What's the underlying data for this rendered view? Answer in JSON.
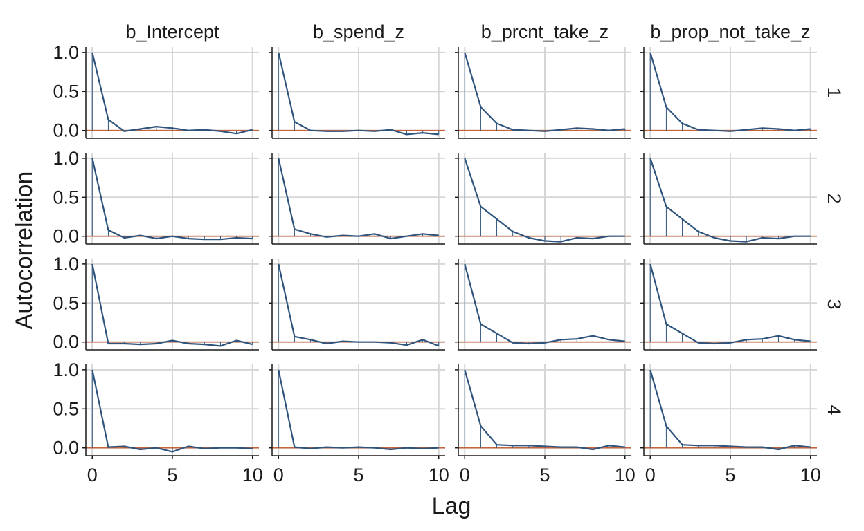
{
  "chart_data": {
    "type": "line",
    "ylabel": "Autocorrelation",
    "xlabel": "Lag",
    "columns": [
      "b_Intercept",
      "b_spend_z",
      "b_prcnt_take_z",
      "b_prop_not_take_z"
    ],
    "column_display": [
      "b_Intercept",
      "b_spend_z",
      "b_prcnt_take_z",
      "b_prop_not_take_z"
    ],
    "rows": [
      "1",
      "2",
      "3",
      "4"
    ],
    "x": [
      0,
      1,
      2,
      3,
      4,
      5,
      6,
      7,
      8,
      9,
      10
    ],
    "xlim": [
      -0.4,
      10.4
    ],
    "ylim": [
      -0.1,
      1.07
    ],
    "x_ticks": [
      0,
      5,
      10
    ],
    "y_ticks": [
      0.0,
      0.5,
      1.0
    ],
    "x_tick_labels": [
      "0",
      "5",
      "10"
    ],
    "y_tick_labels": [
      "0.0",
      "0.5",
      "1.0"
    ],
    "grid": true,
    "colors": {
      "line": "#2e547d",
      "zero_line": "#c8643c",
      "grid": "#d6d6d6",
      "axis": "#1a1a1a"
    },
    "panels": [
      [
        [
          1.0,
          0.14,
          -0.01,
          0.02,
          0.05,
          0.03,
          0.0,
          0.01,
          -0.01,
          -0.04,
          0.01
        ],
        [
          1.0,
          0.11,
          0.0,
          -0.01,
          -0.01,
          0.0,
          -0.01,
          0.01,
          -0.05,
          -0.03,
          -0.05
        ],
        [
          1.0,
          0.3,
          0.09,
          0.01,
          0.0,
          -0.01,
          0.01,
          0.03,
          0.02,
          0.0,
          0.02
        ],
        [
          1.0,
          0.3,
          0.09,
          0.01,
          0.0,
          -0.01,
          0.01,
          0.03,
          0.02,
          0.0,
          0.02
        ]
      ],
      [
        [
          1.0,
          0.08,
          -0.02,
          0.01,
          -0.03,
          0.0,
          -0.03,
          -0.04,
          -0.04,
          -0.02,
          -0.03
        ],
        [
          1.0,
          0.09,
          0.03,
          -0.01,
          0.01,
          0.0,
          0.03,
          -0.03,
          0.0,
          0.03,
          0.01
        ],
        [
          1.0,
          0.38,
          0.22,
          0.06,
          -0.02,
          -0.06,
          -0.07,
          -0.02,
          -0.03,
          0.0,
          0.0
        ],
        [
          1.0,
          0.38,
          0.22,
          0.06,
          -0.02,
          -0.06,
          -0.07,
          -0.02,
          -0.03,
          0.0,
          0.0
        ]
      ],
      [
        [
          1.0,
          -0.02,
          -0.02,
          -0.03,
          -0.02,
          0.02,
          -0.02,
          -0.03,
          -0.05,
          0.02,
          -0.03
        ],
        [
          1.0,
          0.07,
          0.03,
          -0.02,
          0.01,
          0.0,
          0.0,
          -0.01,
          -0.04,
          0.03,
          -0.05
        ],
        [
          1.0,
          0.23,
          0.11,
          -0.01,
          -0.02,
          -0.01,
          0.03,
          0.04,
          0.08,
          0.03,
          0.01
        ],
        [
          1.0,
          0.23,
          0.11,
          -0.01,
          -0.02,
          -0.01,
          0.03,
          0.04,
          0.08,
          0.03,
          0.01
        ]
      ],
      [
        [
          1.0,
          0.01,
          0.02,
          -0.02,
          0.0,
          -0.05,
          0.02,
          -0.01,
          0.0,
          0.0,
          -0.01
        ],
        [
          1.0,
          0.01,
          -0.01,
          0.01,
          0.0,
          0.01,
          0.0,
          -0.02,
          0.0,
          -0.01,
          0.0
        ],
        [
          1.0,
          0.28,
          0.04,
          0.03,
          0.03,
          0.02,
          0.01,
          0.01,
          -0.02,
          0.03,
          0.01
        ],
        [
          1.0,
          0.28,
          0.04,
          0.03,
          0.03,
          0.02,
          0.01,
          0.01,
          -0.02,
          0.03,
          0.01
        ]
      ]
    ]
  }
}
